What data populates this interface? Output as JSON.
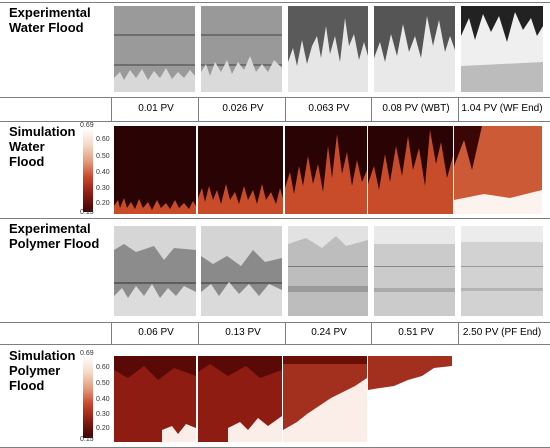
{
  "rows": [
    {
      "label": "Experimental\nWater Flood"
    },
    {
      "label": "Simulation\nWater\nFlood"
    },
    {
      "label": "Experimental\nPolymer Flood"
    },
    {
      "label": "Simulation\nPolymer\nFlood"
    }
  ],
  "water_flood_pv": [
    "0.01 PV",
    "0.026 PV",
    "0.063 PV",
    "0.08 PV (WBT)",
    "1.04 PV (WF End)"
  ],
  "polymer_flood_pv": [
    "0.06 PV",
    "0.13 PV",
    "0.24 PV",
    "0.51 PV",
    "2.50 PV (PF End)"
  ],
  "colorbar": {
    "ticks": [
      "0.69",
      "0.60",
      "0.50",
      "0.40",
      "0.30",
      "0.20",
      "0.15"
    ],
    "colors": {
      "low": "#3b0505",
      "mid": "#c9492f",
      "high": "#ffffff"
    }
  }
}
